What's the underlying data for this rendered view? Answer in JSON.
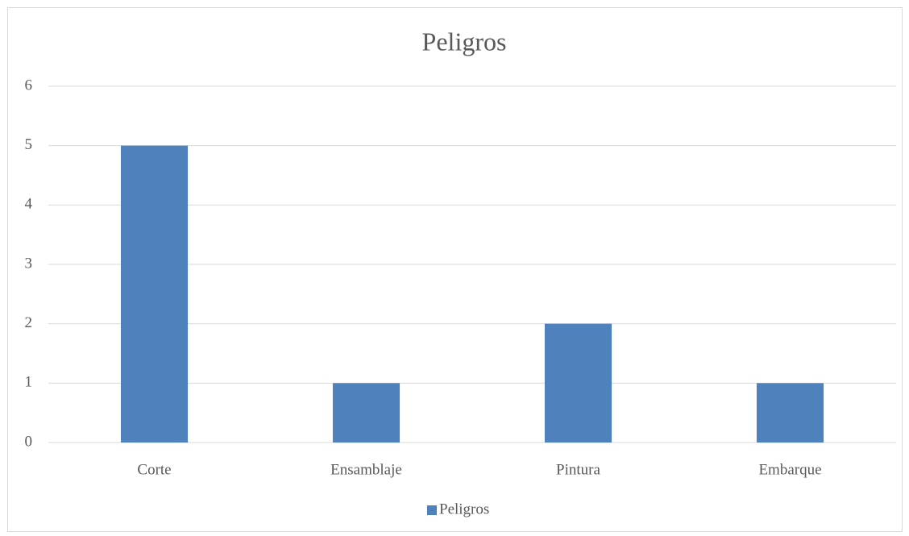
{
  "chart_data": {
    "type": "bar",
    "title": "Peligros",
    "categories": [
      "Corte",
      "Ensamblaje",
      "Pintura",
      "Embarque"
    ],
    "series": [
      {
        "name": "Peligros",
        "color": "#4f81bd",
        "values": [
          5,
          1,
          2,
          1
        ]
      }
    ],
    "ylim": [
      0,
      6
    ],
    "yticks": [
      0,
      1,
      2,
      3,
      4,
      5,
      6
    ],
    "grid": true,
    "legend": "bottom"
  }
}
